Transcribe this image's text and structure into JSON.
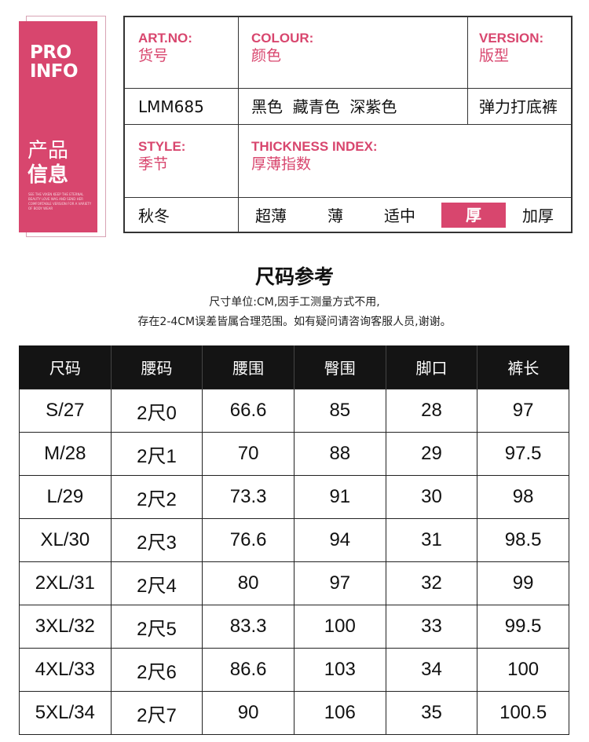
{
  "tag": {
    "pro": "PRO",
    "info": "INFO",
    "cn_line1": "产品",
    "cn_line2": "信息",
    "small_text": "SEE THE VIXEN KEEP THE ETERNAL BEAUTY LOVE WAS AND SEND HER COMFORTABLE VERSION FOR A VARIETY OF BODY WEAR"
  },
  "info": {
    "art_no": {
      "en": "ART.NO:",
      "cn": "货号",
      "value": "LMM685"
    },
    "colour": {
      "en": "COLOUR:",
      "cn": "颜色",
      "value": "黑色  藏青色  深紫色"
    },
    "version": {
      "en": "VERSION:",
      "cn": "版型",
      "value": "弹力打底裤"
    },
    "style": {
      "en": "STYLE:",
      "cn": "季节",
      "value": "秋冬"
    },
    "thickness": {
      "en": "THICKNESS INDEX:",
      "cn": "厚薄指数",
      "options": [
        "超薄",
        "薄",
        "适中",
        "厚",
        "加厚"
      ],
      "selected": "厚"
    },
    "accent_color": "#d8466e"
  },
  "size_chart": {
    "title": "尺码参考",
    "note_line1": "尺寸单位:CM,因手工测量方式不用,",
    "note_line2": "存在2-4CM误差皆属合理范围。如有疑问请咨询客服人员,谢谢。",
    "headers": [
      "尺码",
      "腰码",
      "腰围",
      "臀围",
      "脚口",
      "裤长"
    ],
    "rows": [
      [
        "S/27",
        "2尺0",
        "66.6",
        "85",
        "28",
        "97"
      ],
      [
        "M/28",
        "2尺1",
        "70",
        "88",
        "29",
        "97.5"
      ],
      [
        "L/29",
        "2尺2",
        "73.3",
        "91",
        "30",
        "98"
      ],
      [
        "XL/30",
        "2尺3",
        "76.6",
        "94",
        "31",
        "98.5"
      ],
      [
        "2XL/31",
        "2尺4",
        "80",
        "97",
        "32",
        "99"
      ],
      [
        "3XL/32",
        "2尺5",
        "83.3",
        "100",
        "33",
        "99.5"
      ],
      [
        "4XL/33",
        "2尺6",
        "86.6",
        "103",
        "34",
        "100"
      ],
      [
        "5XL/34",
        "2尺7",
        "90",
        "106",
        "35",
        "100.5"
      ]
    ]
  }
}
